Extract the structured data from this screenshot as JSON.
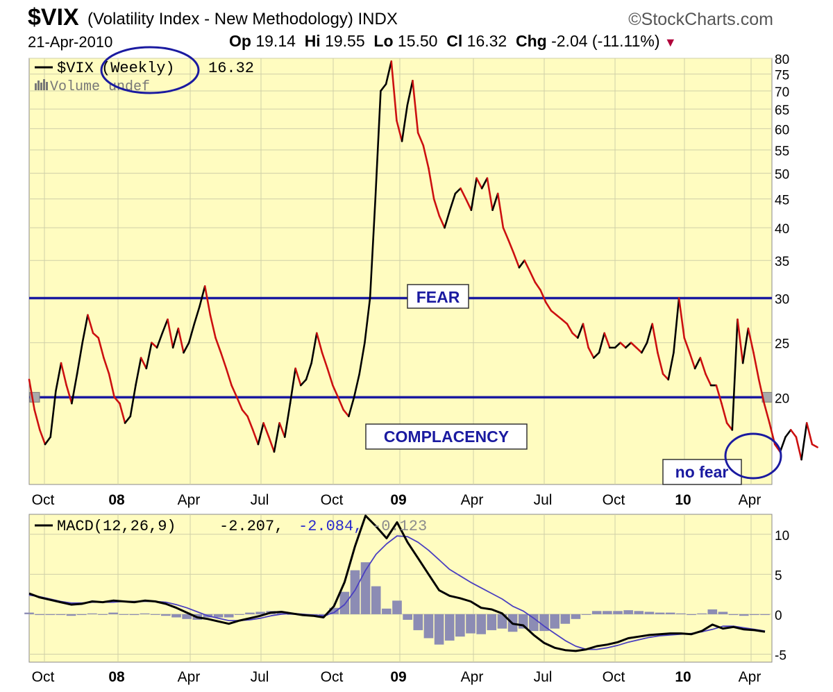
{
  "header": {
    "symbol": "$VIX",
    "subtitle": "(Volatility Index - New Methodology) INDX",
    "brand": "©StockCharts.com",
    "date": "21-Apr-2010",
    "open_label": "Op",
    "open": "19.14",
    "high_label": "Hi",
    "high": "19.55",
    "low_label": "Lo",
    "low": "15.50",
    "close_label": "Cl",
    "close": "16.32",
    "change_label": "Chg",
    "change": "-2.04 (-11.11%)"
  },
  "price_panel": {
    "legend_symbol": "$VIX",
    "legend_period": "(Weekly)",
    "legend_value": "16.32",
    "volume_label": "Volume undef",
    "fear_label": "FEAR",
    "complacency_label": "COMPLACENCY",
    "no_fear_label": "no fear"
  },
  "macd_panel": {
    "legend_label": "MACD(12,26,9)",
    "value1": "-2.207,",
    "value2": "-2.084,",
    "value3": "-0.123"
  },
  "colors": {
    "panel_bg": "#fffcc0",
    "grid": "#cfcfa8",
    "up": "#000000",
    "down": "#cc1010",
    "level_line": "#1a1aa0",
    "macd": "#000000",
    "signal": "#4a3fc0",
    "histogram": "#8c8cb4",
    "annotation": "#1a1aa0"
  },
  "chart_data": [
    {
      "type": "line",
      "title": "$VIX (Weekly)",
      "x_ticks": [
        "Oct",
        "08",
        "Apr",
        "Jul",
        "Oct",
        "09",
        "Apr",
        "Jul",
        "Oct",
        "10",
        "Apr"
      ],
      "y_ticks": [
        20,
        25,
        30,
        35,
        40,
        45,
        50,
        55,
        60,
        65,
        70,
        75,
        80
      ],
      "ylim": [
        14,
        80
      ],
      "y_scale": "log",
      "grid": true,
      "weeks_per_month": 4.35,
      "series": [
        {
          "name": "$VIX",
          "x_label": "week",
          "values": [
            21.5,
            19.0,
            17.5,
            16.5,
            17.0,
            20.5,
            23.0,
            21.0,
            19.5,
            22.0,
            25.0,
            28.0,
            26.0,
            25.5,
            23.5,
            22.0,
            20.0,
            19.5,
            18.0,
            18.5,
            21.0,
            23.5,
            22.5,
            25.0,
            24.5,
            26.0,
            27.5,
            24.5,
            26.5,
            24.0,
            25.0,
            27.0,
            29.0,
            31.5,
            28.0,
            25.5,
            24.0,
            22.5,
            21.0,
            20.0,
            19.0,
            18.5,
            17.5,
            16.5,
            18.0,
            17.0,
            16.0,
            18.0,
            17.0,
            19.5,
            22.5,
            21.0,
            21.5,
            23.0,
            26.0,
            24.0,
            22.5,
            21.0,
            20.0,
            19.0,
            18.5,
            20.0,
            22.0,
            25.0,
            30.0,
            45.0,
            70.0,
            72.0,
            79.0,
            62.0,
            57.0,
            66.0,
            73.0,
            59.0,
            56.0,
            51.0,
            45.0,
            42.0,
            40.0,
            43.0,
            46.0,
            47.0,
            45.0,
            43.0,
            49.0,
            47.0,
            49.0,
            43.0,
            46.0,
            40.0,
            38.0,
            36.0,
            34.0,
            35.0,
            33.5,
            32.0,
            31.0,
            29.5,
            28.5,
            28.0,
            27.5,
            27.0,
            26.0,
            25.5,
            27.0,
            24.5,
            23.5,
            24.0,
            26.0,
            24.5,
            24.5,
            25.0,
            24.5,
            25.0,
            24.5,
            24.0,
            25.0,
            27.0,
            24.0,
            22.0,
            21.5,
            24.0,
            30.0,
            25.5,
            24.0,
            22.5,
            23.5,
            22.0,
            21.0,
            21.0,
            19.5,
            18.0,
            17.5,
            27.5,
            23.0,
            26.5,
            24.0,
            21.5,
            19.5,
            18.0,
            16.5,
            16.0,
            17.0,
            17.5,
            17.0,
            15.5,
            18.0,
            16.5,
            16.3
          ]
        }
      ],
      "horizontal_levels": [
        {
          "value": 30,
          "label": "FEAR"
        },
        {
          "value": 20,
          "label": "COMPLACENCY"
        }
      ]
    },
    {
      "type": "line",
      "title": "MACD(12,26,9)",
      "x_ticks": [
        "Oct",
        "08",
        "Apr",
        "Jul",
        "Oct",
        "09",
        "Apr",
        "Jul",
        "Oct",
        "10",
        "Apr"
      ],
      "y_ticks": [
        -5,
        0,
        5,
        10
      ],
      "ylim": [
        -6,
        12.5
      ],
      "grid": true,
      "series": [
        {
          "name": "MACD",
          "values": [
            2.6,
            2.1,
            1.8,
            1.5,
            1.2,
            1.3,
            1.6,
            1.5,
            1.7,
            1.6,
            1.5,
            1.7,
            1.6,
            1.3,
            0.8,
            0.2,
            -0.4,
            -0.6,
            -0.9,
            -1.2,
            -0.8,
            -0.5,
            -0.2,
            0.2,
            0.3,
            0.1,
            -0.1,
            -0.2,
            -0.4,
            1.0,
            4.0,
            8.5,
            13.0,
            11.0,
            9.5,
            11.5,
            9.0,
            7.0,
            5.0,
            3.0,
            2.3,
            2.0,
            1.6,
            0.8,
            0.6,
            0.1,
            -1.2,
            -1.4,
            -2.6,
            -3.6,
            -4.2,
            -4.5,
            -4.6,
            -4.4,
            -4.0,
            -3.8,
            -3.5,
            -3.0,
            -2.8,
            -2.6,
            -2.5,
            -2.4,
            -2.4,
            -2.5,
            -2.1,
            -1.3,
            -1.8,
            -1.6,
            -1.9,
            -2.0,
            -2.2
          ]
        },
        {
          "name": "Signal",
          "values": [
            2.4,
            2.2,
            1.9,
            1.6,
            1.4,
            1.4,
            1.5,
            1.5,
            1.5,
            1.6,
            1.6,
            1.6,
            1.6,
            1.5,
            1.2,
            0.8,
            0.3,
            -0.2,
            -0.5,
            -0.8,
            -0.8,
            -0.7,
            -0.5,
            -0.2,
            0.0,
            0.1,
            0.0,
            -0.1,
            -0.2,
            0.2,
            1.2,
            3.0,
            5.5,
            7.5,
            8.8,
            9.8,
            9.7,
            9.0,
            8.0,
            6.8,
            5.6,
            4.8,
            4.0,
            3.3,
            2.6,
            1.9,
            1.0,
            0.4,
            -0.5,
            -1.5,
            -2.4,
            -3.3,
            -4.0,
            -4.4,
            -4.4,
            -4.2,
            -3.9,
            -3.5,
            -3.2,
            -2.9,
            -2.7,
            -2.6,
            -2.5,
            -2.4,
            -2.2,
            -1.9,
            -1.5,
            -1.5,
            -1.7,
            -1.9,
            -2.1
          ]
        },
        {
          "name": "Histogram",
          "values": [
            0.2,
            -0.1,
            -0.1,
            -0.1,
            -0.2,
            -0.1,
            0.1,
            0.0,
            0.2,
            0.0,
            -0.1,
            0.1,
            0.0,
            -0.2,
            -0.4,
            -0.6,
            -0.7,
            -0.4,
            -0.4,
            -0.4,
            0.0,
            0.2,
            0.3,
            0.4,
            0.3,
            0.0,
            -0.1,
            -0.1,
            -0.2,
            0.8,
            2.8,
            5.5,
            6.5,
            3.5,
            0.7,
            1.7,
            -0.7,
            -2.0,
            -3.0,
            -3.8,
            -3.3,
            -2.8,
            -2.4,
            -2.5,
            -2.0,
            -1.8,
            -2.2,
            -1.8,
            -2.1,
            -2.1,
            -1.8,
            -1.2,
            -0.6,
            0.0,
            0.4,
            0.4,
            0.4,
            0.5,
            0.4,
            0.3,
            0.2,
            0.2,
            0.1,
            -0.1,
            0.1,
            0.6,
            0.3,
            -0.1,
            -0.2,
            -0.1,
            -0.1
          ]
        }
      ]
    }
  ]
}
